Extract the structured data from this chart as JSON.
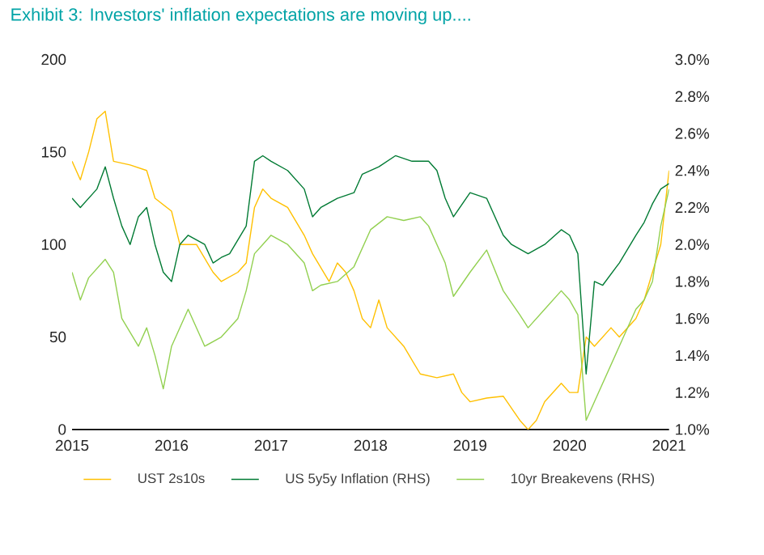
{
  "chart_data": {
    "type": "line",
    "title": "Exhibit 3: Investors' inflation expectations are moving up....",
    "xlim": [
      "2015",
      "2021"
    ],
    "xticks": [
      "2015",
      "2016",
      "2017",
      "2018",
      "2019",
      "2020",
      "2021"
    ],
    "ylim": [
      0,
      200
    ],
    "yticks": [
      0,
      50,
      100,
      150,
      200
    ],
    "y2lim": [
      1.0,
      3.0
    ],
    "y2ticks": [
      {
        "value": 1.0,
        "label": "1.0%"
      },
      {
        "value": 1.2,
        "label": "1.2%"
      },
      {
        "value": 1.4,
        "label": "1.4%"
      },
      {
        "value": 1.6,
        "label": "1.6%"
      },
      {
        "value": 1.8,
        "label": "1.8%"
      },
      {
        "value": 2.0,
        "label": "2.0%"
      },
      {
        "value": 2.2,
        "label": "2.2%"
      },
      {
        "value": 2.4,
        "label": "2.4%"
      },
      {
        "value": 2.6,
        "label": "2.6%"
      },
      {
        "value": 2.8,
        "label": "2.8%"
      },
      {
        "value": 3.0,
        "label": "3.0%"
      }
    ],
    "legend": "bottom",
    "grid": false,
    "marker": "none",
    "line_style": "solid",
    "series": [
      {
        "name": "UST 2s10s",
        "color": "#ffc000",
        "axis": "y",
        "x": [
          "2015-01",
          "2015-02",
          "2015-03",
          "2015-04",
          "2015-05",
          "2015-06",
          "2015-08",
          "2015-10",
          "2015-11",
          "2016-01",
          "2016-02",
          "2016-04",
          "2016-06",
          "2016-07",
          "2016-09",
          "2016-10",
          "2016-11",
          "2016-12",
          "2017-01",
          "2017-03",
          "2017-05",
          "2017-06",
          "2017-08",
          "2017-09",
          "2017-10",
          "2017-11",
          "2017-12",
          "2018-01",
          "2018-02",
          "2018-03",
          "2018-05",
          "2018-07",
          "2018-09",
          "2018-11",
          "2018-12",
          "2019-01",
          "2019-03",
          "2019-05",
          "2019-07",
          "2019-08",
          "2019-09",
          "2019-10",
          "2019-12",
          "2020-01",
          "2020-02",
          "2020-03",
          "2020-04",
          "2020-06",
          "2020-07",
          "2020-09",
          "2020-10",
          "2020-11",
          "2020-12",
          "2021-01"
        ],
        "values": [
          145,
          135,
          150,
          168,
          172,
          145,
          143,
          140,
          125,
          118,
          100,
          100,
          85,
          80,
          85,
          90,
          120,
          130,
          125,
          120,
          105,
          95,
          80,
          90,
          85,
          75,
          60,
          55,
          70,
          55,
          45,
          30,
          28,
          30,
          20,
          15,
          17,
          18,
          5,
          0,
          5,
          15,
          25,
          20,
          20,
          50,
          45,
          55,
          50,
          60,
          70,
          85,
          100,
          140
        ]
      },
      {
        "name": "US 5y5y Inflation (RHS)",
        "color": "#007a33",
        "axis": "y2",
        "x": [
          "2015-01",
          "2015-02",
          "2015-04",
          "2015-05",
          "2015-06",
          "2015-07",
          "2015-08",
          "2015-09",
          "2015-10",
          "2015-11",
          "2015-12",
          "2016-01",
          "2016-02",
          "2016-03",
          "2016-05",
          "2016-06",
          "2016-07",
          "2016-08",
          "2016-10",
          "2016-11",
          "2016-12",
          "2017-01",
          "2017-03",
          "2017-05",
          "2017-06",
          "2017-07",
          "2017-09",
          "2017-11",
          "2017-12",
          "2018-02",
          "2018-04",
          "2018-06",
          "2018-08",
          "2018-09",
          "2018-10",
          "2018-11",
          "2019-01",
          "2019-03",
          "2019-05",
          "2019-06",
          "2019-08",
          "2019-10",
          "2019-12",
          "2020-01",
          "2020-02",
          "2020-03",
          "2020-04",
          "2020-05",
          "2020-07",
          "2020-09",
          "2020-10",
          "2020-11",
          "2020-12",
          "2021-01"
        ],
        "values": [
          2.25,
          2.2,
          2.3,
          2.42,
          2.25,
          2.1,
          2.0,
          2.15,
          2.2,
          2.0,
          1.85,
          1.8,
          2.0,
          2.05,
          2.0,
          1.9,
          1.93,
          1.95,
          2.1,
          2.45,
          2.48,
          2.45,
          2.4,
          2.3,
          2.15,
          2.2,
          2.25,
          2.28,
          2.38,
          2.42,
          2.48,
          2.45,
          2.45,
          2.4,
          2.25,
          2.15,
          2.28,
          2.25,
          2.05,
          2.0,
          1.95,
          2.0,
          2.08,
          2.05,
          1.95,
          1.3,
          1.8,
          1.78,
          1.9,
          2.05,
          2.12,
          2.22,
          2.3,
          2.33
        ]
      },
      {
        "name": "10yr Breakevens (RHS)",
        "color": "#92d050",
        "axis": "y2",
        "x": [
          "2015-01",
          "2015-02",
          "2015-03",
          "2015-05",
          "2015-06",
          "2015-07",
          "2015-09",
          "2015-10",
          "2015-11",
          "2015-12",
          "2016-01",
          "2016-03",
          "2016-04",
          "2016-05",
          "2016-07",
          "2016-09",
          "2016-10",
          "2016-11",
          "2016-12",
          "2017-01",
          "2017-03",
          "2017-05",
          "2017-06",
          "2017-07",
          "2017-09",
          "2017-11",
          "2017-12",
          "2018-01",
          "2018-03",
          "2018-05",
          "2018-07",
          "2018-08",
          "2018-10",
          "2018-11",
          "2019-01",
          "2019-03",
          "2019-05",
          "2019-07",
          "2019-08",
          "2019-10",
          "2019-12",
          "2020-01",
          "2020-02",
          "2020-03",
          "2020-04",
          "2020-05",
          "2020-07",
          "2020-09",
          "2020-10",
          "2020-11",
          "2020-12",
          "2021-01"
        ],
        "values": [
          1.85,
          1.7,
          1.82,
          1.92,
          1.85,
          1.6,
          1.45,
          1.55,
          1.4,
          1.22,
          1.45,
          1.65,
          1.55,
          1.45,
          1.5,
          1.6,
          1.75,
          1.95,
          2.0,
          2.05,
          2.0,
          1.9,
          1.75,
          1.78,
          1.8,
          1.88,
          1.98,
          2.08,
          2.15,
          2.13,
          2.15,
          2.1,
          1.9,
          1.72,
          1.85,
          1.97,
          1.75,
          1.62,
          1.55,
          1.65,
          1.75,
          1.7,
          1.62,
          1.05,
          1.15,
          1.25,
          1.45,
          1.65,
          1.7,
          1.8,
          2.1,
          2.3
        ]
      }
    ]
  }
}
